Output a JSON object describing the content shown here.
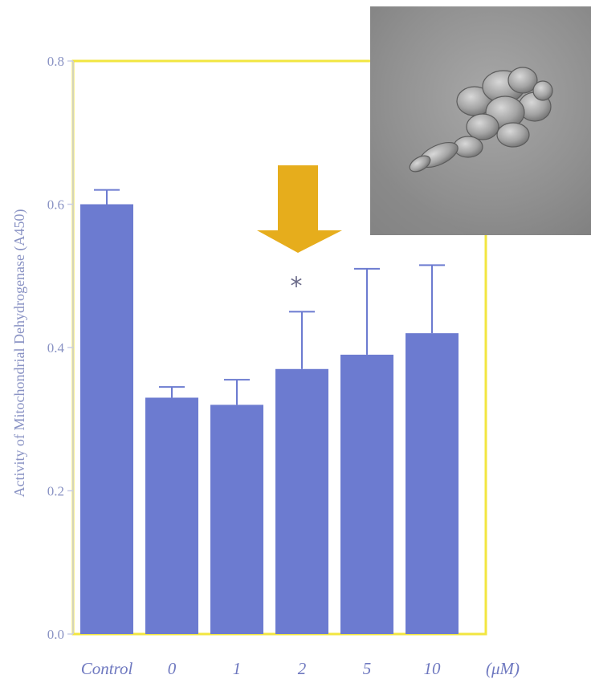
{
  "chart_data": {
    "type": "bar",
    "categories": [
      "Control",
      "0",
      "1",
      "2",
      "5",
      "10"
    ],
    "values": [
      0.6,
      0.33,
      0.32,
      0.37,
      0.39,
      0.42
    ],
    "error_upper": [
      0.62,
      0.345,
      0.355,
      0.45,
      0.51,
      0.515
    ],
    "ylabel": "Activity of Mitochondrial Dehydrogenase (A450)",
    "xunit": "(μM)",
    "ylim": [
      0,
      0.8
    ],
    "yticks": [
      "0.0",
      "0.2",
      "0.4",
      "0.6",
      "0.8"
    ],
    "significance_marker": "*",
    "significance_category": "2",
    "bar_color": "#6c7bd0",
    "frame_color": "#f2e640",
    "arrow_color": "#e6ad1c",
    "grid": false
  },
  "inset": {
    "type": "micrograph",
    "subject": "cell cluster"
  }
}
